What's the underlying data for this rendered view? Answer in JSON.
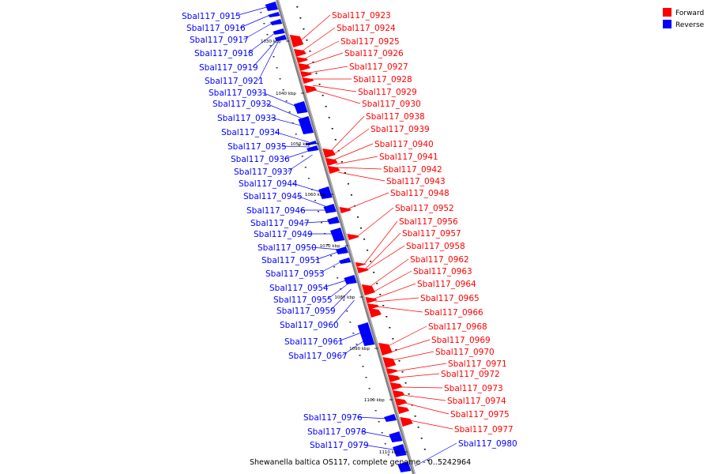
{
  "legend": {
    "forward_label": "Forward",
    "reverse_label": "Reverse",
    "forward_color": "#ff0000",
    "reverse_color": "#0000ff"
  },
  "caption": "Shewanella baltica OS117, complete genome - 0..5242964",
  "ticks": [
    "1030 kbp",
    "1040 kbp",
    "1050 kbp",
    "1060 kbp",
    "1070 kbp",
    "1080 kbp",
    "1090 kbp",
    "1100 kbp",
    "1110 kbp"
  ],
  "reverse_genes": [
    "Sbal117_0915",
    "Sbal117_0916",
    "Sbal117_0917",
    "Sbal117_0918",
    "Sbal117_0919",
    "Sbal117_0921",
    "Sbal117_0931",
    "Sbal117_0932",
    "Sbal117_0933",
    "Sbal117_0934",
    "Sbal117_0935",
    "Sbal117_0936",
    "Sbal117_0937",
    "Sbal117_0944",
    "Sbal117_0945",
    "Sbal117_0946",
    "Sbal117_0947",
    "Sbal117_0949",
    "Sbal117_0950",
    "Sbal117_0951",
    "Sbal117_0953",
    "Sbal117_0954",
    "Sbal117_0955",
    "Sbal117_0959",
    "Sbal117_0960",
    "Sbal117_0961",
    "Sbal117_0967",
    "Sbal117_0976",
    "Sbal117_0978",
    "Sbal117_0979",
    "Sbal117_0980"
  ],
  "forward_genes": [
    "Sbal117_0923",
    "Sbal117_0924",
    "Sbal117_0925",
    "Sbal117_0926",
    "Sbal117_0927",
    "Sbal117_0928",
    "Sbal117_0929",
    "Sbal117_0930",
    "Sbal117_0938",
    "Sbal117_0939",
    "Sbal117_0940",
    "Sbal117_0941",
    "Sbal117_0942",
    "Sbal117_0943",
    "Sbal117_0948",
    "Sbal117_0952",
    "Sbal117_0956",
    "Sbal117_0957",
    "Sbal117_0958",
    "Sbal117_0962",
    "Sbal117_0963",
    "Sbal117_0964",
    "Sbal117_0965",
    "Sbal117_0966",
    "Sbal117_0968",
    "Sbal117_0969",
    "Sbal117_0970",
    "Sbal117_0971",
    "Sbal117_0972",
    "Sbal117_0973",
    "Sbal117_0974",
    "Sbal117_0975",
    "Sbal117_0977"
  ]
}
